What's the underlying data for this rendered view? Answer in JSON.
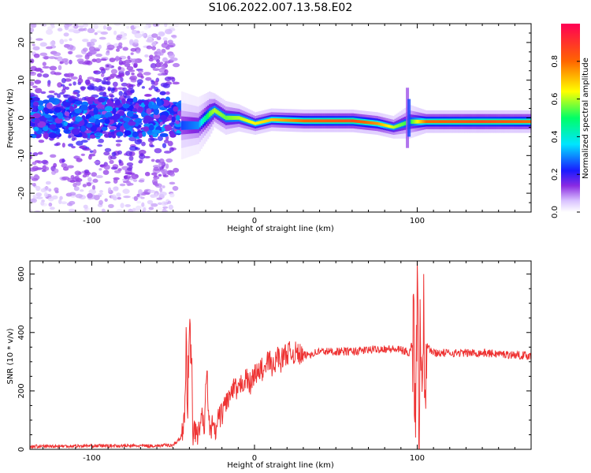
{
  "title": "S106.2022.007.13.58.E02",
  "chart_data": [
    {
      "type": "heatmap",
      "title": "S106.2022.007.13.58.E02",
      "xlabel": "Height of straight line (km)",
      "ylabel": "Frequency (Hz)",
      "xlim": [
        -138,
        170
      ],
      "ylim": [
        -25,
        25
      ],
      "xticks": [
        -100,
        0,
        100
      ],
      "yticks": [
        -20,
        -10,
        0,
        10,
        20
      ],
      "colorbar": {
        "label": "Normalized spectral amplitude",
        "range": [
          0,
          1
        ],
        "ticks": [
          "0.0",
          "0.2",
          "0.4",
          "0.6",
          "0.8"
        ]
      },
      "ridge": [
        {
          "x": -138,
          "f": 0.0,
          "amp": 0.12,
          "width": 6.0
        },
        {
          "x": -100,
          "f": 0.5,
          "amp": 0.15,
          "width": 5.0
        },
        {
          "x": -60,
          "f": 0.5,
          "amp": 0.15,
          "width": 4.0
        },
        {
          "x": -45,
          "f": -2.0,
          "amp": 0.25,
          "width": 3.0
        },
        {
          "x": -35,
          "f": -2.0,
          "amp": 0.3,
          "width": 2.5
        },
        {
          "x": -28,
          "f": 1.0,
          "amp": 0.55,
          "width": 2.0
        },
        {
          "x": -25,
          "f": 2.0,
          "amp": 0.6,
          "width": 1.5
        },
        {
          "x": -18,
          "f": 0.0,
          "amp": 0.55,
          "width": 1.5
        },
        {
          "x": -10,
          "f": 0.0,
          "amp": 0.6,
          "width": 1.2
        },
        {
          "x": 0,
          "f": -1.5,
          "amp": 0.65,
          "width": 1.0
        },
        {
          "x": 10,
          "f": -0.5,
          "amp": 0.7,
          "width": 1.0
        },
        {
          "x": 30,
          "f": -0.8,
          "amp": 0.8,
          "width": 1.0
        },
        {
          "x": 60,
          "f": -0.8,
          "amp": 0.85,
          "width": 1.0
        },
        {
          "x": 75,
          "f": -1.5,
          "amp": 0.75,
          "width": 1.0
        },
        {
          "x": 85,
          "f": -2.5,
          "amp": 0.6,
          "width": 1.0
        },
        {
          "x": 95,
          "f": -1.0,
          "amp": 0.5,
          "width": 1.5
        },
        {
          "x": 105,
          "f": -1.0,
          "amp": 0.8,
          "width": 1.0
        },
        {
          "x": 140,
          "f": -1.0,
          "amp": 0.85,
          "width": 1.0
        },
        {
          "x": 170,
          "f": -1.0,
          "amp": 0.8,
          "width": 1.0
        }
      ]
    },
    {
      "type": "line",
      "xlabel": "Height of straight line (km)",
      "ylabel": "SNR (10 * v/v)",
      "xlim": [
        -138,
        170
      ],
      "ylim": [
        0,
        645
      ],
      "xticks": [
        -100,
        0,
        100
      ],
      "yticks": [
        0,
        200,
        400,
        600
      ],
      "color": "#ee3333",
      "x": [
        -138,
        -100,
        -60,
        -50,
        -45,
        -43,
        -42,
        -41,
        -40,
        -39,
        -38,
        -37,
        -36,
        -35,
        -34,
        -33,
        -32,
        -31,
        -30,
        -29,
        -28,
        -27,
        -26,
        -25,
        -24,
        -22,
        -20,
        -18,
        -15,
        -12,
        -10,
        -8,
        -5,
        -2,
        0,
        2,
        4,
        6,
        8,
        10,
        12,
        14,
        16,
        18,
        20,
        25,
        30,
        40,
        60,
        80,
        90,
        95,
        98,
        99,
        100,
        101,
        102,
        103,
        104,
        105,
        106,
        108,
        110,
        120,
        140,
        170
      ],
      "y": [
        10,
        12,
        12,
        15,
        40,
        120,
        300,
        200,
        350,
        360,
        120,
        80,
        60,
        40,
        60,
        120,
        100,
        60,
        200,
        240,
        90,
        60,
        80,
        70,
        50,
        110,
        120,
        160,
        180,
        210,
        190,
        230,
        240,
        220,
        270,
        250,
        280,
        260,
        300,
        300,
        270,
        330,
        300,
        320,
        330,
        330,
        320,
        335,
        335,
        345,
        340,
        330,
        380,
        200,
        600,
        60,
        480,
        180,
        420,
        300,
        360,
        340,
        330,
        330,
        330,
        320
      ]
    }
  ]
}
